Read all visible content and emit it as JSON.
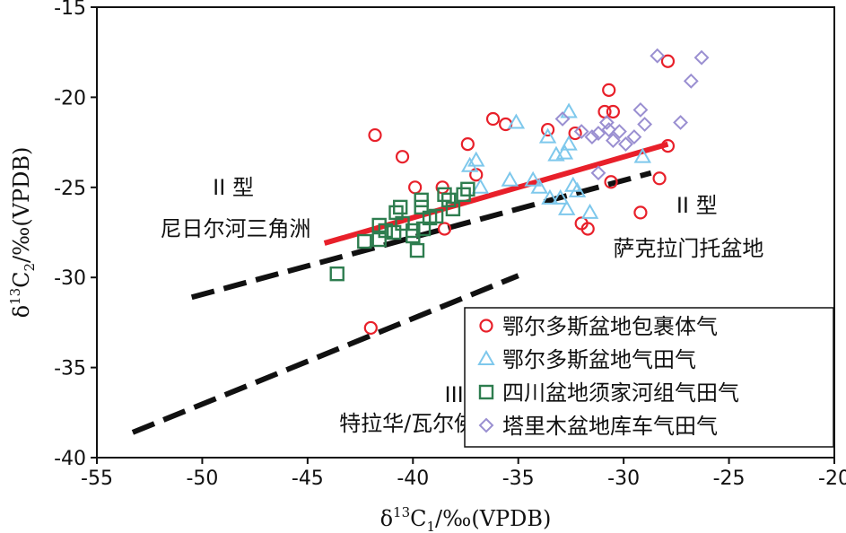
{
  "chart_data": {
    "type": "scatter",
    "xlabel_main": "δ",
    "xlabel_sup": "13",
    "xlabel_rest": "C",
    "xlabel_sub": "1",
    "xlabel_unit": "/‰(VPDB)",
    "ylabel_main": "δ",
    "ylabel_sup": "13",
    "ylabel_rest": "C",
    "ylabel_sub": "2",
    "ylabel_unit": "/‰(VPDB)",
    "xlim": [
      -55,
      -20
    ],
    "ylim": [
      -40,
      -15
    ],
    "x_ticks": [
      -55,
      -50,
      -45,
      -40,
      -35,
      -30,
      -25,
      -20
    ],
    "y_ticks": [
      -40,
      -35,
      -30,
      -25,
      -20,
      -15
    ],
    "grid": false,
    "legend_position": "bottom-right",
    "annotations": [
      {
        "id": "nigerdelta-type",
        "text": "II 型",
        "x": -49.5,
        "y": -25.4
      },
      {
        "id": "nigerdelta-name",
        "text": "尼日尔河三角洲",
        "x": -52,
        "y": -27.7
      },
      {
        "id": "sacramento-type",
        "text": "II 型",
        "x": -27.5,
        "y": -26.4
      },
      {
        "id": "sacramento-name",
        "text": "萨克拉门托盆地",
        "x": -30.5,
        "y": -28.8
      },
      {
        "id": "t3-type",
        "text": "III 型",
        "x": -38.5,
        "y": -36.9
      },
      {
        "id": "t3-name",
        "text": "特拉华/瓦尔佛得盆地",
        "x": -43.5,
        "y": -38.5
      }
    ],
    "lines": [
      {
        "id": "red-trend",
        "color": "#e8202a",
        "dash": false,
        "x": [
          -44.2,
          -27.9
        ],
        "y": [
          -28.1,
          -22.6
        ]
      },
      {
        "id": "black-upper",
        "color": "#111111",
        "dash": true,
        "x": [
          -50.5,
          -28.7
        ],
        "y": [
          -31.1,
          -24.2
        ]
      },
      {
        "id": "black-lower",
        "color": "#111111",
        "dash": true,
        "x": [
          -53.3,
          -35.0
        ],
        "y": [
          -38.6,
          -29.9
        ]
      }
    ],
    "series": [
      {
        "name": "鄂尔多斯盆地包裹体气",
        "marker": "circle",
        "color": "#e8202a",
        "points": [
          [
            -41.8,
            -22.1
          ],
          [
            -40.5,
            -23.3
          ],
          [
            -39.9,
            -25.0
          ],
          [
            -38.6,
            -25.0
          ],
          [
            -38.5,
            -27.3
          ],
          [
            -37.4,
            -22.6
          ],
          [
            -37.0,
            -24.3
          ],
          [
            -36.2,
            -21.2
          ],
          [
            -35.6,
            -21.5
          ],
          [
            -33.6,
            -21.8
          ],
          [
            -32.3,
            -22.0
          ],
          [
            -32.0,
            -27.0
          ],
          [
            -31.7,
            -27.3
          ],
          [
            -30.9,
            -20.8
          ],
          [
            -30.7,
            -19.6
          ],
          [
            -30.6,
            -24.7
          ],
          [
            -30.5,
            -20.8
          ],
          [
            -29.2,
            -26.4
          ],
          [
            -28.3,
            -24.5
          ],
          [
            -27.9,
            -22.7
          ],
          [
            -27.9,
            -18.0
          ],
          [
            -42.0,
            -32.8
          ]
        ]
      },
      {
        "name": "鄂尔多斯盆地气田气",
        "marker": "triangle",
        "color": "#7ec8ec",
        "points": [
          [
            -37.3,
            -23.8
          ],
          [
            -37.0,
            -23.5
          ],
          [
            -35.4,
            -24.6
          ],
          [
            -35.1,
            -21.4
          ],
          [
            -34.3,
            -24.6
          ],
          [
            -34.0,
            -25.0
          ],
          [
            -33.6,
            -22.2
          ],
          [
            -33.5,
            -25.6
          ],
          [
            -33.2,
            -23.2
          ],
          [
            -33.0,
            -25.6
          ],
          [
            -32.7,
            -26.2
          ],
          [
            -32.6,
            -22.6
          ],
          [
            -32.4,
            -24.9
          ],
          [
            -32.2,
            -25.2
          ],
          [
            -31.6,
            -26.4
          ],
          [
            -32.6,
            -20.8
          ],
          [
            -32.8,
            -23.1
          ],
          [
            -29.1,
            -23.3
          ],
          [
            -36.8,
            -25.0
          ]
        ]
      },
      {
        "name": "四川盆地须家河组气田气",
        "marker": "square",
        "color": "#2e7d4f",
        "points": [
          [
            -43.6,
            -29.8
          ],
          [
            -42.3,
            -28.0
          ],
          [
            -41.6,
            -27.9
          ],
          [
            -41.6,
            -27.1
          ],
          [
            -40.9,
            -27.5
          ],
          [
            -40.8,
            -26.4
          ],
          [
            -40.6,
            -26.1
          ],
          [
            -40.5,
            -27.0
          ],
          [
            -40.0,
            -27.7
          ],
          [
            -40.0,
            -27.4
          ],
          [
            -39.8,
            -28.5
          ],
          [
            -39.6,
            -26.1
          ],
          [
            -39.6,
            -25.7
          ],
          [
            -39.5,
            -27.3
          ],
          [
            -39.2,
            -26.7
          ],
          [
            -38.9,
            -26.6
          ],
          [
            -38.5,
            -25.4
          ],
          [
            -38.3,
            -25.7
          ],
          [
            -38.1,
            -26.2
          ],
          [
            -37.6,
            -25.4
          ],
          [
            -37.4,
            -25.1
          ],
          [
            -41.3,
            -27.4
          ]
        ]
      },
      {
        "name": "塔里木盆地库车气田气",
        "marker": "diamond",
        "color": "#9a8fd1",
        "points": [
          [
            -32.9,
            -21.2
          ],
          [
            -32.0,
            -21.9
          ],
          [
            -31.5,
            -22.2
          ],
          [
            -31.2,
            -22.0
          ],
          [
            -30.8,
            -21.4
          ],
          [
            -30.7,
            -21.8
          ],
          [
            -30.5,
            -22.4
          ],
          [
            -30.2,
            -21.9
          ],
          [
            -29.9,
            -22.6
          ],
          [
            -29.5,
            -22.2
          ],
          [
            -29.2,
            -20.7
          ],
          [
            -29.0,
            -21.5
          ],
          [
            -28.4,
            -17.7
          ],
          [
            -27.3,
            -21.4
          ],
          [
            -26.8,
            -19.1
          ],
          [
            -26.3,
            -17.8
          ],
          [
            -31.2,
            -24.2
          ]
        ]
      }
    ]
  }
}
